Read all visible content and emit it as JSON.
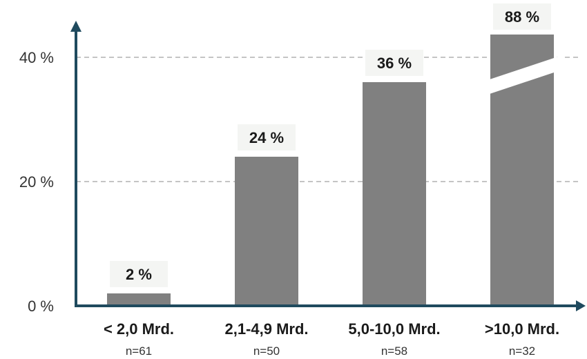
{
  "chart_data": {
    "type": "bar",
    "title": "",
    "xlabel": "",
    "ylabel": "",
    "categories": [
      "< 2,0 Mrd.",
      "2,1-4,9 Mrd.",
      "5,0-10,0 Mrd.",
      ">10,0 Mrd."
    ],
    "sample_sizes": [
      "n=61",
      "n=50",
      "n=58",
      "n=32"
    ],
    "values": [
      2,
      24,
      36,
      88
    ],
    "value_labels": [
      "2 %",
      "24 %",
      "36 %",
      "88 %"
    ],
    "truncated": [
      false,
      false,
      false,
      true
    ],
    "ylim": [
      0,
      48
    ],
    "yticks": [
      0,
      20,
      40
    ],
    "ytick_labels": [
      "0 %",
      "20 %",
      "40 %"
    ],
    "grid": "horizontal dashed at 20 % and 40 %",
    "colors": {
      "bar": "#808080",
      "axis": "#1f4a5e",
      "grid": "#b0b0b0",
      "label_bg": "#f4f5f3"
    }
  }
}
